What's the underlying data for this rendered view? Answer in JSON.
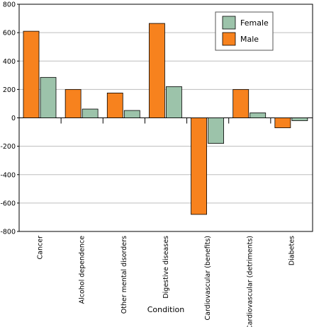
{
  "chart_data": {
    "type": "bar",
    "categories": [
      "Cancer",
      "Alcohol dependence",
      "Other mental disorders",
      "Digestive diseases",
      "Cardiovascular (benefits)",
      "Cardiovascular (detriments)",
      "Diabetes"
    ],
    "series": [
      {
        "name": "Male",
        "color": "#f7821e",
        "values": [
          610,
          200,
          175,
          665,
          -680,
          200,
          -70
        ]
      },
      {
        "name": "Female",
        "color": "#9cc3aa",
        "values": [
          285,
          62,
          52,
          220,
          -180,
          35,
          -20
        ]
      }
    ],
    "title": "",
    "xlabel": "Condition",
    "ylabel": "",
    "ylim": [
      -800,
      800
    ],
    "yticks": [
      -800,
      -600,
      -400,
      -200,
      0,
      200,
      400,
      600,
      800
    ],
    "grid": true,
    "legend_position": "top-right",
    "legend_order": [
      "Female",
      "Male"
    ]
  }
}
